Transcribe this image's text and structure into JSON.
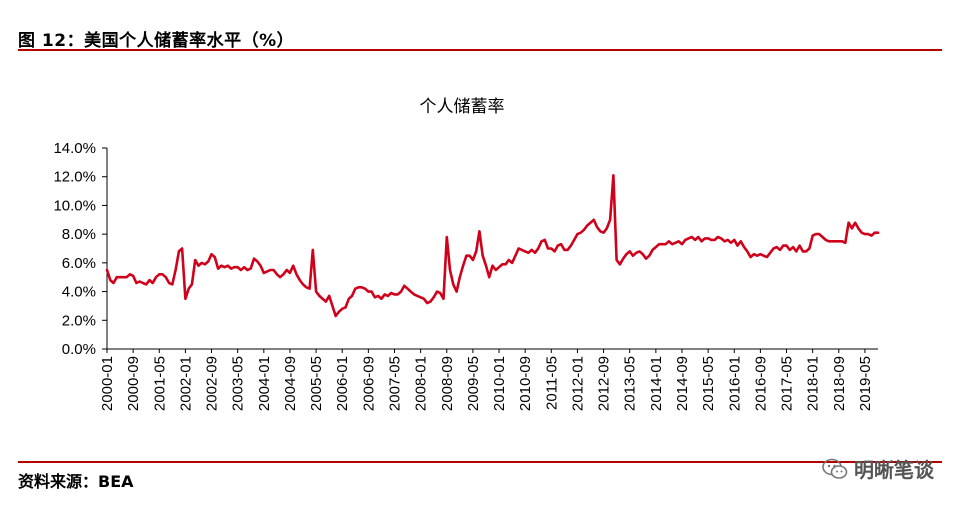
{
  "figure": {
    "title": "图 12：美国个人储蓄率水平（%）",
    "source": "资料来源：BEA",
    "watermark": "明晰笔谈",
    "watermark_icon": "wechat-icon"
  },
  "colors": {
    "rule": "#b50000",
    "series": "#d0021b",
    "axis": "#000000"
  },
  "chart_data": {
    "type": "line",
    "title": "个人储蓄率",
    "xlabel": "",
    "ylabel": "",
    "ylim": [
      0,
      14
    ],
    "yticks": [
      "0.0%",
      "2.0%",
      "4.0%",
      "6.0%",
      "8.0%",
      "10.0%",
      "12.0%",
      "14.0%"
    ],
    "xticks": [
      "2000-01",
      "2000-09",
      "2001-05",
      "2002-01",
      "2002-09",
      "2003-05",
      "2004-01",
      "2004-09",
      "2005-05",
      "2006-01",
      "2006-09",
      "2007-05",
      "2008-01",
      "2008-09",
      "2009-05",
      "2010-01",
      "2010-09",
      "2011-05",
      "2012-01",
      "2012-09",
      "2013-05",
      "2014-01",
      "2014-09",
      "2015-05",
      "2016-01",
      "2016-09",
      "2017-05",
      "2018-01",
      "2018-09",
      "2019-05"
    ],
    "grid": false,
    "legend": "none",
    "x_start": "2000-01",
    "x_end": "2019-09",
    "series": [
      {
        "name": "",
        "points": [
          [
            "2000-01",
            5.5
          ],
          [
            "2000-02",
            4.8
          ],
          [
            "2000-03",
            4.6
          ],
          [
            "2000-04",
            5.0
          ],
          [
            "2000-05",
            5.0
          ],
          [
            "2000-06",
            5.0
          ],
          [
            "2000-07",
            5.0
          ],
          [
            "2000-08",
            5.2
          ],
          [
            "2000-09",
            5.1
          ],
          [
            "2000-10",
            4.6
          ],
          [
            "2000-11",
            4.7
          ],
          [
            "2000-12",
            4.6
          ],
          [
            "2001-01",
            4.5
          ],
          [
            "2001-02",
            4.8
          ],
          [
            "2001-03",
            4.6
          ],
          [
            "2001-04",
            5.0
          ],
          [
            "2001-05",
            5.2
          ],
          [
            "2001-06",
            5.2
          ],
          [
            "2001-07",
            5.0
          ],
          [
            "2001-08",
            4.6
          ],
          [
            "2001-09",
            4.5
          ],
          [
            "2001-10",
            5.5
          ],
          [
            "2001-11",
            6.8
          ],
          [
            "2001-12",
            7.0
          ],
          [
            "2002-01",
            3.5
          ],
          [
            "2002-02",
            4.2
          ],
          [
            "2002-03",
            4.5
          ],
          [
            "2002-04",
            6.2
          ],
          [
            "2002-05",
            5.8
          ],
          [
            "2002-06",
            6.0
          ],
          [
            "2002-07",
            5.9
          ],
          [
            "2002-08",
            6.1
          ],
          [
            "2002-09",
            6.6
          ],
          [
            "2002-10",
            6.4
          ],
          [
            "2002-11",
            5.6
          ],
          [
            "2002-12",
            5.8
          ],
          [
            "2003-01",
            5.7
          ],
          [
            "2003-02",
            5.8
          ],
          [
            "2003-03",
            5.6
          ],
          [
            "2003-04",
            5.7
          ],
          [
            "2003-05",
            5.7
          ],
          [
            "2003-06",
            5.5
          ],
          [
            "2003-07",
            5.7
          ],
          [
            "2003-08",
            5.5
          ],
          [
            "2003-09",
            5.6
          ],
          [
            "2003-10",
            6.3
          ],
          [
            "2003-11",
            6.1
          ],
          [
            "2003-12",
            5.8
          ],
          [
            "2004-01",
            5.3
          ],
          [
            "2004-02",
            5.4
          ],
          [
            "2004-03",
            5.5
          ],
          [
            "2004-04",
            5.5
          ],
          [
            "2004-05",
            5.2
          ],
          [
            "2004-06",
            5.0
          ],
          [
            "2004-07",
            5.2
          ],
          [
            "2004-08",
            5.5
          ],
          [
            "2004-09",
            5.3
          ],
          [
            "2004-10",
            5.8
          ],
          [
            "2004-11",
            5.2
          ],
          [
            "2004-12",
            4.8
          ],
          [
            "2005-01",
            4.5
          ],
          [
            "2005-02",
            4.3
          ],
          [
            "2005-03",
            4.2
          ],
          [
            "2005-04",
            6.9
          ],
          [
            "2005-05",
            4.0
          ],
          [
            "2005-06",
            3.7
          ],
          [
            "2005-07",
            3.5
          ],
          [
            "2005-08",
            3.3
          ],
          [
            "2005-09",
            3.7
          ],
          [
            "2005-10",
            3.0
          ],
          [
            "2005-11",
            2.3
          ],
          [
            "2005-12",
            2.6
          ],
          [
            "2006-01",
            2.8
          ],
          [
            "2006-02",
            2.9
          ],
          [
            "2006-03",
            3.5
          ],
          [
            "2006-04",
            3.7
          ],
          [
            "2006-05",
            4.2
          ],
          [
            "2006-06",
            4.3
          ],
          [
            "2006-07",
            4.3
          ],
          [
            "2006-08",
            4.2
          ],
          [
            "2006-09",
            4.0
          ],
          [
            "2006-10",
            4.0
          ],
          [
            "2006-11",
            3.6
          ],
          [
            "2006-12",
            3.7
          ],
          [
            "2007-01",
            3.5
          ],
          [
            "2007-02",
            3.8
          ],
          [
            "2007-03",
            3.7
          ],
          [
            "2007-04",
            3.9
          ],
          [
            "2007-05",
            3.8
          ],
          [
            "2007-06",
            3.8
          ],
          [
            "2007-07",
            4.0
          ],
          [
            "2007-08",
            4.4
          ],
          [
            "2007-09",
            4.2
          ],
          [
            "2007-10",
            4.0
          ],
          [
            "2007-11",
            3.8
          ],
          [
            "2007-12",
            3.7
          ],
          [
            "2008-01",
            3.6
          ],
          [
            "2008-02",
            3.5
          ],
          [
            "2008-03",
            3.2
          ],
          [
            "2008-04",
            3.3
          ],
          [
            "2008-05",
            3.6
          ],
          [
            "2008-06",
            4.0
          ],
          [
            "2008-07",
            3.9
          ],
          [
            "2008-08",
            3.5
          ],
          [
            "2008-09",
            7.8
          ],
          [
            "2008-10",
            5.5
          ],
          [
            "2008-11",
            4.5
          ],
          [
            "2008-12",
            4.0
          ],
          [
            "2009-01",
            5.0
          ],
          [
            "2009-02",
            5.8
          ],
          [
            "2009-03",
            6.5
          ],
          [
            "2009-04",
            6.5
          ],
          [
            "2009-05",
            6.2
          ],
          [
            "2009-06",
            6.8
          ],
          [
            "2009-07",
            8.2
          ],
          [
            "2009-08",
            6.5
          ],
          [
            "2009-09",
            5.8
          ],
          [
            "2009-10",
            5.0
          ],
          [
            "2009-11",
            5.8
          ],
          [
            "2009-12",
            5.5
          ],
          [
            "2010-01",
            5.7
          ],
          [
            "2010-02",
            5.9
          ],
          [
            "2010-03",
            5.9
          ],
          [
            "2010-04",
            6.2
          ],
          [
            "2010-05",
            6.0
          ],
          [
            "2010-06",
            6.5
          ],
          [
            "2010-07",
            7.0
          ],
          [
            "2010-08",
            6.9
          ],
          [
            "2010-09",
            6.8
          ],
          [
            "2010-10",
            6.7
          ],
          [
            "2010-11",
            6.9
          ],
          [
            "2010-12",
            6.7
          ],
          [
            "2011-01",
            7.0
          ],
          [
            "2011-02",
            7.5
          ],
          [
            "2011-03",
            7.6
          ],
          [
            "2011-04",
            7.0
          ],
          [
            "2011-05",
            7.0
          ],
          [
            "2011-06",
            6.8
          ],
          [
            "2011-07",
            7.2
          ],
          [
            "2011-08",
            7.3
          ],
          [
            "2011-09",
            6.9
          ],
          [
            "2011-10",
            6.9
          ],
          [
            "2011-11",
            7.2
          ],
          [
            "2011-12",
            7.6
          ],
          [
            "2012-01",
            8.0
          ],
          [
            "2012-02",
            8.1
          ],
          [
            "2012-03",
            8.3
          ],
          [
            "2012-04",
            8.6
          ],
          [
            "2012-05",
            8.8
          ],
          [
            "2012-06",
            9.0
          ],
          [
            "2012-07",
            8.5
          ],
          [
            "2012-08",
            8.2
          ],
          [
            "2012-09",
            8.1
          ],
          [
            "2012-10",
            8.4
          ],
          [
            "2012-11",
            9.0
          ],
          [
            "2012-12",
            12.1
          ],
          [
            "2013-01",
            6.2
          ],
          [
            "2013-02",
            5.9
          ],
          [
            "2013-03",
            6.3
          ],
          [
            "2013-04",
            6.6
          ],
          [
            "2013-05",
            6.8
          ],
          [
            "2013-06",
            6.5
          ],
          [
            "2013-07",
            6.7
          ],
          [
            "2013-08",
            6.8
          ],
          [
            "2013-09",
            6.6
          ],
          [
            "2013-10",
            6.3
          ],
          [
            "2013-11",
            6.5
          ],
          [
            "2013-12",
            6.9
          ],
          [
            "2014-01",
            7.1
          ],
          [
            "2014-02",
            7.3
          ],
          [
            "2014-03",
            7.3
          ],
          [
            "2014-04",
            7.3
          ],
          [
            "2014-05",
            7.5
          ],
          [
            "2014-06",
            7.3
          ],
          [
            "2014-07",
            7.4
          ],
          [
            "2014-08",
            7.5
          ],
          [
            "2014-09",
            7.3
          ],
          [
            "2014-10",
            7.6
          ],
          [
            "2014-11",
            7.7
          ],
          [
            "2014-12",
            7.8
          ],
          [
            "2015-01",
            7.6
          ],
          [
            "2015-02",
            7.8
          ],
          [
            "2015-03",
            7.5
          ],
          [
            "2015-04",
            7.7
          ],
          [
            "2015-05",
            7.7
          ],
          [
            "2015-06",
            7.6
          ],
          [
            "2015-07",
            7.6
          ],
          [
            "2015-08",
            7.8
          ],
          [
            "2015-09",
            7.7
          ],
          [
            "2015-10",
            7.5
          ],
          [
            "2015-11",
            7.6
          ],
          [
            "2015-12",
            7.4
          ],
          [
            "2016-01",
            7.6
          ],
          [
            "2016-02",
            7.2
          ],
          [
            "2016-03",
            7.5
          ],
          [
            "2016-04",
            7.1
          ],
          [
            "2016-05",
            6.8
          ],
          [
            "2016-06",
            6.4
          ],
          [
            "2016-07",
            6.6
          ],
          [
            "2016-08",
            6.5
          ],
          [
            "2016-09",
            6.6
          ],
          [
            "2016-10",
            6.5
          ],
          [
            "2016-11",
            6.4
          ],
          [
            "2016-12",
            6.7
          ],
          [
            "2017-01",
            7.0
          ],
          [
            "2017-02",
            7.1
          ],
          [
            "2017-03",
            6.9
          ],
          [
            "2017-04",
            7.2
          ],
          [
            "2017-05",
            7.2
          ],
          [
            "2017-06",
            6.9
          ],
          [
            "2017-07",
            7.1
          ],
          [
            "2017-08",
            6.8
          ],
          [
            "2017-09",
            7.2
          ],
          [
            "2017-10",
            6.8
          ],
          [
            "2017-11",
            6.8
          ],
          [
            "2017-12",
            7.0
          ],
          [
            "2018-01",
            7.9
          ],
          [
            "2018-02",
            8.0
          ],
          [
            "2018-03",
            8.0
          ],
          [
            "2018-04",
            7.8
          ],
          [
            "2018-05",
            7.6
          ],
          [
            "2018-06",
            7.5
          ],
          [
            "2018-07",
            7.5
          ],
          [
            "2018-08",
            7.5
          ],
          [
            "2018-09",
            7.5
          ],
          [
            "2018-10",
            7.5
          ],
          [
            "2018-11",
            7.4
          ],
          [
            "2018-12",
            8.8
          ],
          [
            "2019-01",
            8.4
          ],
          [
            "2019-02",
            8.8
          ],
          [
            "2019-03",
            8.4
          ],
          [
            "2019-04",
            8.1
          ],
          [
            "2019-05",
            8.0
          ],
          [
            "2019-06",
            8.0
          ],
          [
            "2019-07",
            7.9
          ],
          [
            "2019-08",
            8.1
          ],
          [
            "2019-09",
            8.1
          ]
        ]
      }
    ]
  }
}
